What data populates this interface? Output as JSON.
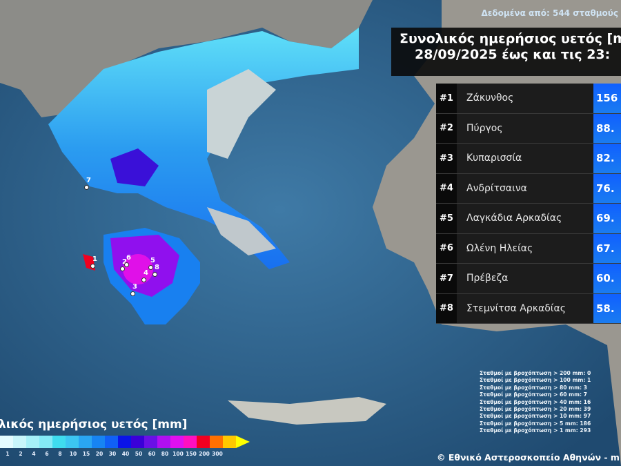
{
  "header": {
    "source_text": "Δεδομένα από: 544 σταθμούς",
    "title_line1": "Συνολικός ημερήσιος υετός [m",
    "title_line2": "28/09/2025 έως και τις 23:"
  },
  "ranking": [
    {
      "rank": "#1",
      "name": "Ζάκυνθος",
      "value": "156"
    },
    {
      "rank": "#2",
      "name": "Πύργος",
      "value": "88."
    },
    {
      "rank": "#3",
      "name": "Κυπαρισσία",
      "value": "82."
    },
    {
      "rank": "#4",
      "name": "Ανδρίτσαινα",
      "value": "76."
    },
    {
      "rank": "#5",
      "name": "Λαγκάδια Αρκαδίας",
      "value": "69."
    },
    {
      "rank": "#6",
      "name": "Ωλένη Ηλείας",
      "value": "67."
    },
    {
      "rank": "#7",
      "name": "Πρέβεζα",
      "value": "60."
    },
    {
      "rank": "#8",
      "name": "Στεμνίτσα Αρκαδίας",
      "value": "58."
    }
  ],
  "stats": [
    "Σταθμοί με βροχόπτωση > 200 mm: 0",
    "Σταθμοί με βροχόπτωση > 100 mm: 1",
    "Σταθμοί με βροχόπτωση > 80 mm: 3",
    "Σταθμοί με βροχόπτωση > 60 mm: 7",
    "Σταθμοί με βροχόπτωση > 40 mm: 16",
    "Σταθμοί με βροχόπτωση > 20 mm: 39",
    "Σταθμοί με βροχόπτωση > 10 mm: 97",
    "Σταθμοί με βροχόπτωση > 5 mm: 186",
    "Σταθμοί με βροχόπτωση > 1 mm: 293"
  ],
  "copyright": "© Εθνικό Αστεροσκοπείο Αθηνών - m",
  "colorbar": {
    "title": "λικός ημερήσιος υετός [mm]",
    "ticks": [
      "1",
      "2",
      "4",
      "6",
      "8",
      "10",
      "15",
      "20",
      "30",
      "40",
      "50",
      "60",
      "80",
      "100",
      "150",
      "200",
      "300"
    ],
    "colors": [
      "#e4fcff",
      "#c8f6fb",
      "#a6f0f8",
      "#84e9f6",
      "#3fdcef",
      "#3cc6f2",
      "#2aa6f2",
      "#1784f2",
      "#1060f6",
      "#0a14e8",
      "#3a00d8",
      "#6a10e6",
      "#b010f0",
      "#e010f0",
      "#ff10c0",
      "#f00020",
      "#ff7000",
      "#ffc800"
    ],
    "arrow_color": "#ffff00"
  },
  "map_markers": [
    "1",
    "2",
    "3",
    "4",
    "5",
    "6",
    "7",
    "8"
  ]
}
